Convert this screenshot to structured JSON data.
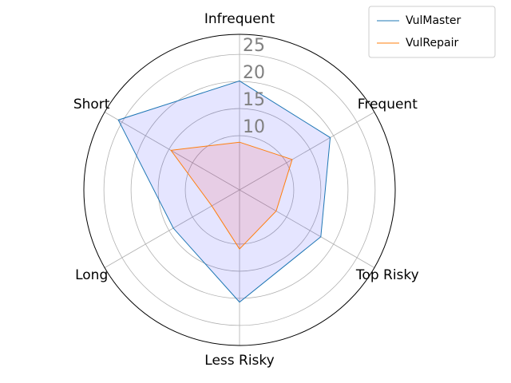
{
  "chart_data": {
    "type": "radar",
    "categories": [
      "Infrequent",
      "Frequent",
      "Top Risky",
      "Less Risky",
      "Long",
      "Short"
    ],
    "series": [
      {
        "name": "VulMaster",
        "color": "#1f77b4",
        "fill": "#0000ff",
        "values": [
          20.1,
          19.3,
          17.3,
          20.7,
          14.1,
          25.8
        ]
      },
      {
        "name": "VulRepair",
        "color": "#ff7f0e",
        "fill": "#ff0000",
        "values": [
          8.8,
          11.2,
          7.8,
          10.9,
          5.9,
          14.6
        ]
      }
    ],
    "ylim": [
      0,
      28.7
    ],
    "yticks": [
      10,
      15,
      20,
      25
    ],
    "grid": true,
    "legend": "upper right"
  }
}
